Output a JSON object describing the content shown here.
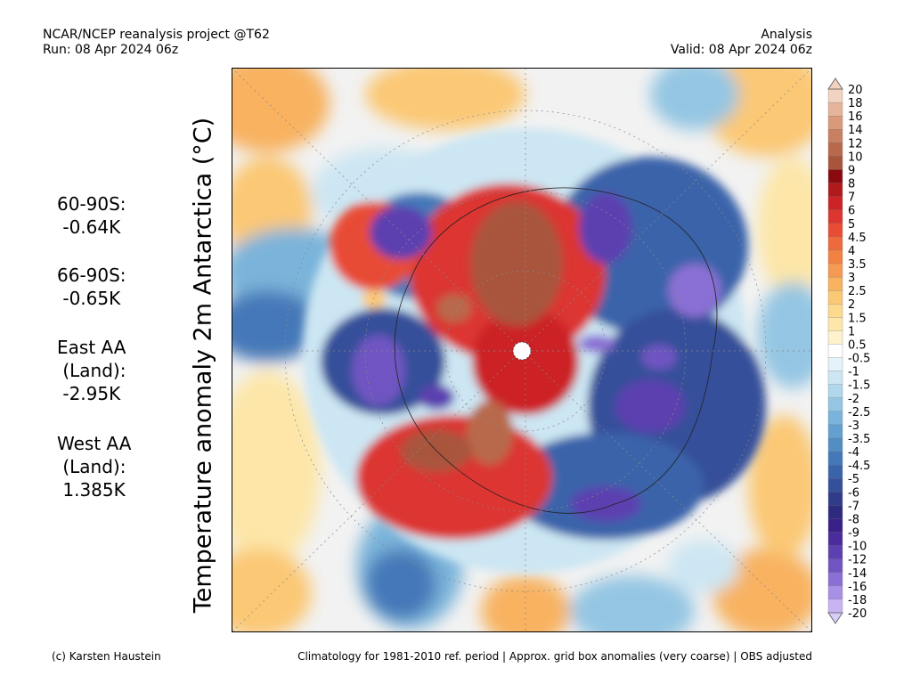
{
  "header": {
    "left_line1": "NCAR/NCEP reanalysis project @T62",
    "left_line2": "Run: 08 Apr 2024 06z",
    "right_line1": "Analysis",
    "right_line2": "Valid: 08 Apr 2024 06z"
  },
  "y_label": "Temperature anomaly 2m Antarctica (°C)",
  "stats": [
    {
      "lines": [
        "60-90S:",
        " -0.64K"
      ]
    },
    {
      "lines": [
        "66-90S:",
        " -0.65K"
      ]
    },
    {
      "lines": [
        "East AA",
        " (Land):",
        " -2.95K"
      ]
    },
    {
      "lines": [
        "West AA",
        " (Land):",
        " 1.385K"
      ]
    }
  ],
  "colorbar": {
    "labels": [
      "20",
      "18",
      "16",
      "14",
      "12",
      "10",
      "9",
      "8",
      "7",
      "6",
      "5",
      "4.5",
      "4",
      "3.5",
      "3",
      "2.5",
      "2",
      "1.5",
      "1",
      "0.5",
      "-0.5",
      "-1",
      "-1.5",
      "-2",
      "-2.5",
      "-3",
      "-3.5",
      "-4",
      "-4.5",
      "-5",
      "-6",
      "-7",
      "-8",
      "-9",
      "-10",
      "-12",
      "-14",
      "-16",
      "-18",
      "-20"
    ],
    "colors": [
      "#f2d2c0",
      "#e6b49a",
      "#d99a7c",
      "#c98060",
      "#b8694c",
      "#a9553c",
      "#8b0a10",
      "#b01a1c",
      "#cc2426",
      "#dc3630",
      "#e84c34",
      "#ee6a3c",
      "#f28244",
      "#f59a52",
      "#f8b260",
      "#fbc874",
      "#fcd98c",
      "#fde6a8",
      "#fef2cc",
      "#ffffff",
      "#e4f2f9",
      "#cce6f3",
      "#b0d7ec",
      "#94c6e3",
      "#7ab4da",
      "#64a0cf",
      "#528dc4",
      "#4478b8",
      "#3a64aa",
      "#34509a",
      "#303c8a",
      "#2e2a80",
      "#382088",
      "#4a2c9c",
      "#5c40b0",
      "#7055c2",
      "#8a70d4",
      "#a890e4",
      "#c8b4f2"
    ]
  },
  "footer": {
    "left": "(c) Karsten Haustein",
    "right": "Climatology for 1981-2010 ref. period | Approx. grid box anomalies (very coarse) | OBS adjusted"
  }
}
